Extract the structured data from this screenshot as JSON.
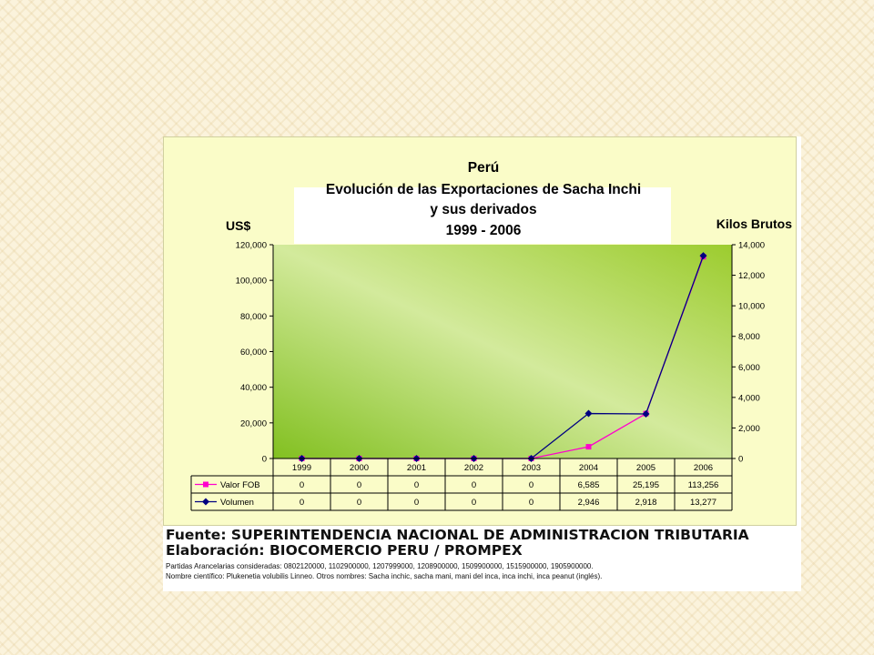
{
  "chart_data": {
    "type": "line",
    "title_lines": [
      "Perú",
      "Evolución de las Exportaciones de Sacha Inchi",
      "y sus derivados",
      "1999 - 2006"
    ],
    "ylabel_left": "US$",
    "ylabel_right": "Kilos Brutos",
    "categories": [
      "1999",
      "2000",
      "2001",
      "2002",
      "2003",
      "2004",
      "2005",
      "2006"
    ],
    "y_left": {
      "min": 0,
      "max": 120000,
      "ticks": [
        "0",
        "20,000",
        "40,000",
        "60,000",
        "80,000",
        "100,000",
        "120,000"
      ]
    },
    "y_right": {
      "min": 0,
      "max": 14000,
      "ticks": [
        "0",
        "2,000",
        "4,000",
        "6,000",
        "8,000",
        "10,000",
        "12,000",
        "14,000"
      ]
    },
    "series": [
      {
        "name": "Valor FOB",
        "axis": "left",
        "color": "#ff00cc",
        "marker": "square",
        "values": [
          0,
          0,
          0,
          0,
          0,
          6585,
          25195,
          113256
        ],
        "labels": [
          "0",
          "0",
          "0",
          "0",
          "0",
          "6,585",
          "25,195",
          "113,256"
        ]
      },
      {
        "name": "Volumen",
        "axis": "right",
        "color": "#000080",
        "marker": "diamond",
        "values": [
          0,
          0,
          0,
          0,
          0,
          2946,
          2918,
          13277
        ],
        "labels": [
          "0",
          "0",
          "0",
          "0",
          "0",
          "2,946",
          "2,918",
          "13,277"
        ]
      }
    ],
    "data_table": true,
    "plot_background": "gradient green",
    "grid": false
  },
  "caption": {
    "source": "Fuente: SUPERINTENDENCIA NACIONAL DE ADMINISTRACION TRIBUTARIA",
    "elaboration": "Elaboración: BIOCOMERCIO PERU / PROMPEX",
    "tariffs": "Partidas Arancelarias consideradas: 0802120000, 1102900000, 1207999000, 1208900000, 1509900000, 1515900000, 1905900000.",
    "scientific_name": "Nombre científico: Plukenetia volubilis Linneo. Otros nombres: Sacha inchic, sacha mani, mani del inca, inca inchi, inca peanut (inglés)."
  }
}
